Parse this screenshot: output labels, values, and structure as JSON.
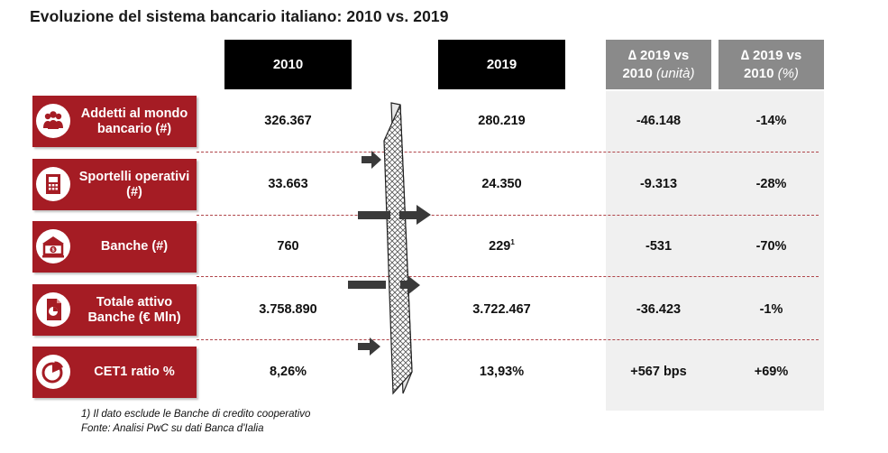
{
  "title": "Evoluzione del sistema bancario italiano: 2010 vs. 2019",
  "headers": {
    "y2010": "2010",
    "y2019": "2019",
    "delta_unit_line1": "∆ 2019 vs",
    "delta_unit_line2": "2010",
    "delta_unit_unit": "(unità)",
    "delta_pct_line1": "∆ 2019 vs",
    "delta_pct_line2": "2010",
    "delta_pct_unit": "(%)"
  },
  "chart_data": {
    "type": "table",
    "title": "Evoluzione del sistema bancario italiano: 2010 vs. 2019",
    "columns": [
      "2010",
      "2019",
      "∆ 2019 vs 2010 (unità)",
      "∆ 2019 vs 2010 (%)"
    ],
    "rows": [
      {
        "label": "Addetti al mondo bancario (#)",
        "icon": "people-icon",
        "v2010": "326.367",
        "v2019": "280.219",
        "note_mark": "",
        "delta_units": "-46.148",
        "delta_pct": "-14%"
      },
      {
        "label": "Sportelli operativi (#)",
        "icon": "atm-icon",
        "v2010": "33.663",
        "v2019": "24.350",
        "note_mark": "",
        "delta_units": "-9.313",
        "delta_pct": "-28%"
      },
      {
        "label": "Banche (#)",
        "icon": "bank-icon",
        "v2010": "760",
        "v2019": "229",
        "note_mark": "1",
        "delta_units": "-531",
        "delta_pct": "-70%"
      },
      {
        "label": "Totale attivo Banche (€ Mln)",
        "icon": "document-chart-icon",
        "v2010": "3.758.890",
        "v2019": "3.722.467",
        "note_mark": "",
        "delta_units": "-36.423",
        "delta_pct": "-1%"
      },
      {
        "label": "CET1 ratio %",
        "icon": "pie-chart-icon",
        "v2010": "8,26%",
        "v2019": "13,93%",
        "note_mark": "",
        "delta_units": "+567 bps",
        "delta_pct": "+69%"
      }
    ]
  },
  "footnotes": {
    "note1": "1) Il dato esclude le Banche di credito cooperativo",
    "source": "Fonte: Analisi PwC su dati Banca d'Ialia"
  },
  "colors": {
    "label_red": "#a51c24",
    "header_black": "#000000",
    "header_grey": "#8a8a8a",
    "panel_grey": "#f0f0f0",
    "dash_red": "#b0454a",
    "arrow_grey": "#3a3a3a"
  }
}
